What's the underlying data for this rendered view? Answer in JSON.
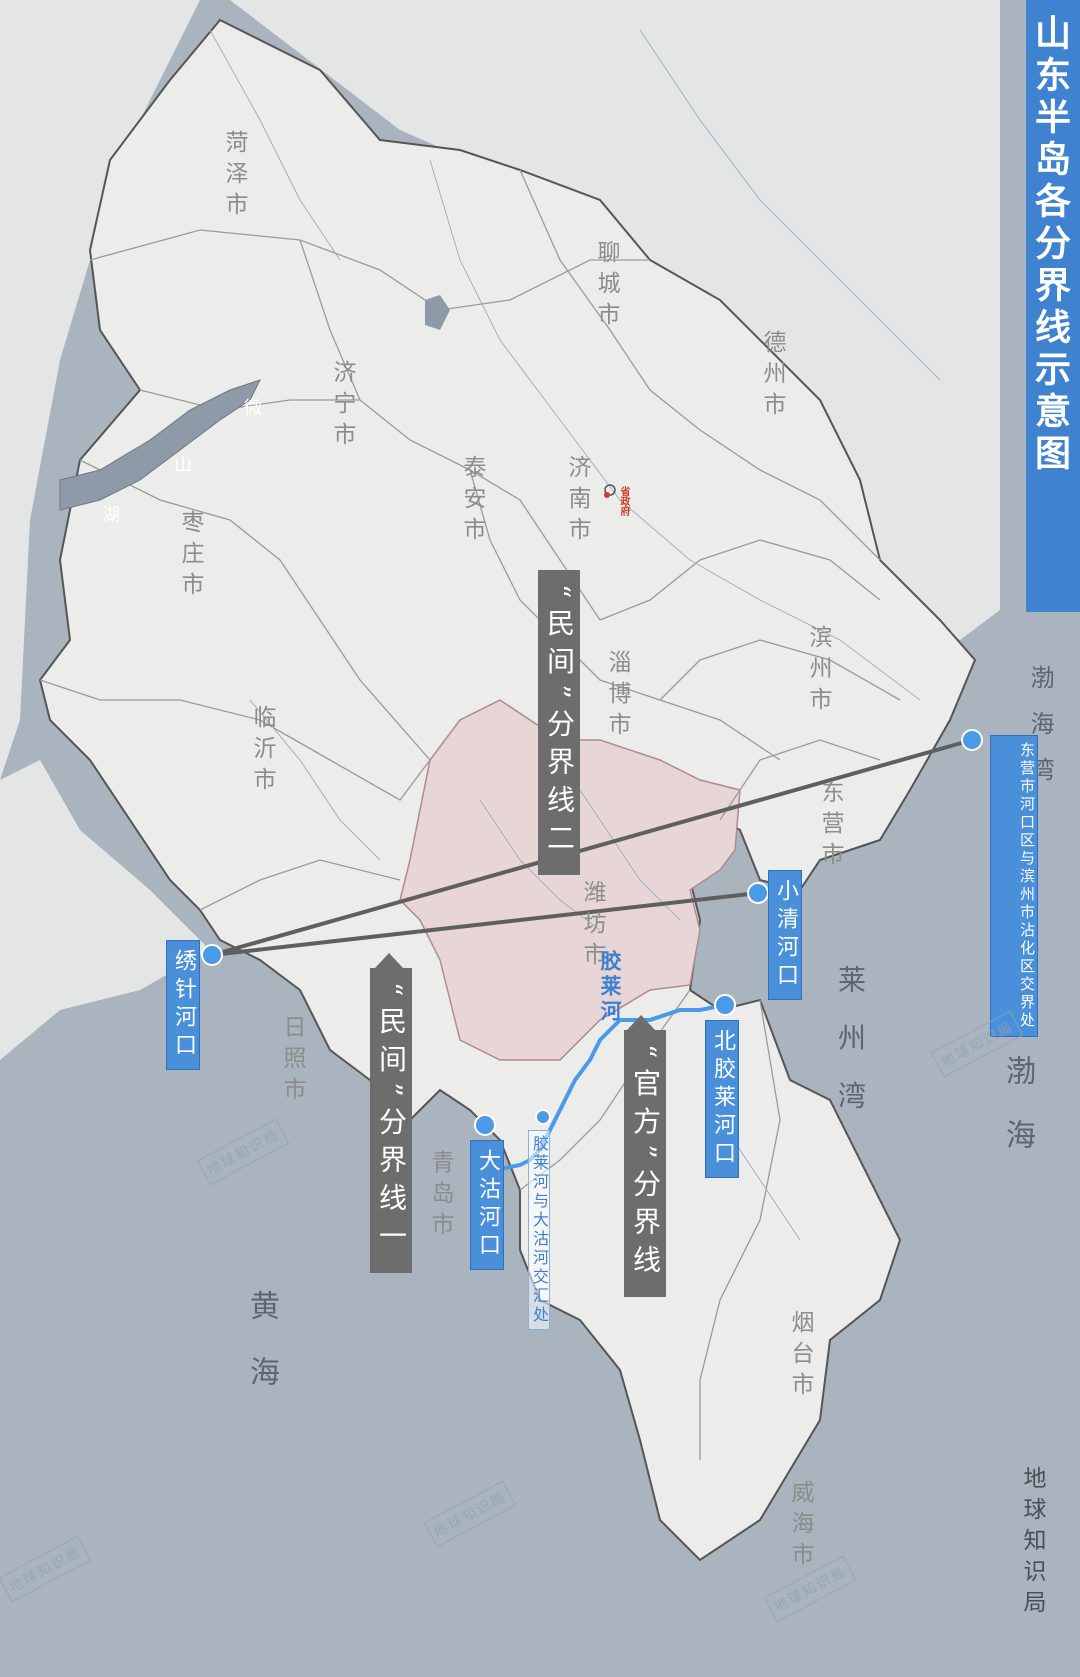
{
  "title": "山东半岛各分界线示意图",
  "brand": "地球知识局",
  "watermark": "地球知识局",
  "cities": {
    "heze": "菏泽市",
    "liaocheng": "聊城市",
    "dezhou": "德州市",
    "jining": "济宁市",
    "taian": "泰安市",
    "jinan": "济南市",
    "zaozhuang": "枣庄市",
    "binzhou": "滨州市",
    "zibo": "淄博市",
    "linyi": "临沂市",
    "dongying": "东营市",
    "weifang": "潍坊市",
    "rizhao": "日照市",
    "qingdao": "青岛市",
    "yantai": "烟台市",
    "weihai": "威海市"
  },
  "capital_label": "省政府",
  "lake": {
    "wei": "微",
    "shan": "山",
    "hu": "湖"
  },
  "seas": {
    "bohai_bay": "渤海湾",
    "bohai": "渤海",
    "laizhou_bay": "莱州湾",
    "yellow_sea": "黄海"
  },
  "points": {
    "dongying_binzhou": "东营市河口区与滨州市沾化区交界处",
    "xiaoqing": "小清河口",
    "xiuzhen": "绣针河口",
    "beijiaolai": "北胶莱河口",
    "dagu": "大沽河口",
    "confluence": "胶莱河与大沽河交汇处"
  },
  "river": "胶莱河",
  "lines": {
    "folk_two": "“民间”分界线二",
    "folk_one": "“民间”分界线一",
    "official": "“官方”分界线"
  },
  "colors": {
    "sea": "#a9b4bf",
    "land": "#ececea",
    "weifang_highlight": "#e8d5d6",
    "title_bar": "#3f82cf",
    "river": "#4a9ae8",
    "label_blue": "#4a8fd9",
    "label_gray": "#6d6d6d"
  }
}
